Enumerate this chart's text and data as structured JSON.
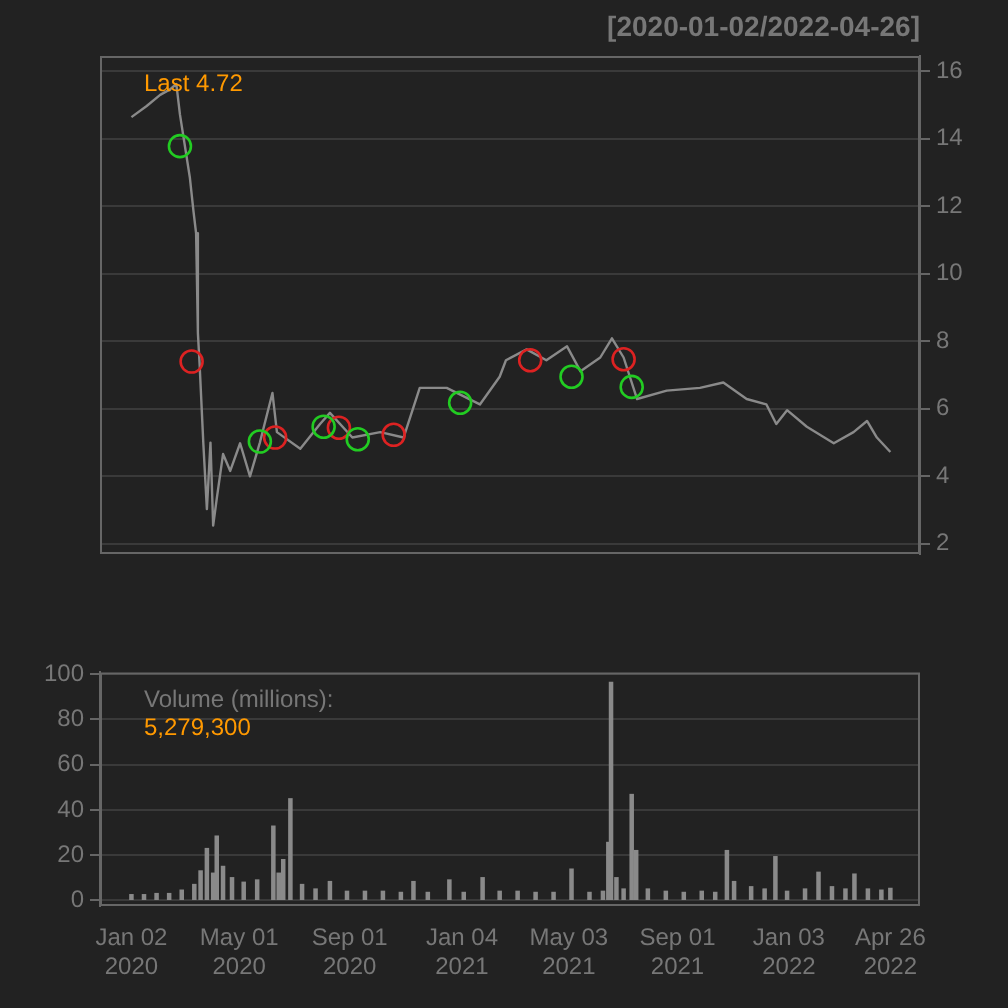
{
  "chart_data": [
    {
      "type": "line",
      "title": "[2020-01-02/2022-04-26]",
      "annotations": [
        "Last 4.72"
      ],
      "xlim": [
        "2019-11-28",
        "2022-05-29"
      ],
      "ylim": [
        1.7,
        16.45
      ],
      "yticks": [
        2,
        4,
        6,
        8,
        10,
        12,
        14,
        16
      ],
      "grid": "y",
      "tick_labels": "y",
      "legend": false,
      "series": [
        {
          "type": "line",
          "color": "#8a8a8a",
          "marker": "none",
          "x": [
            "2020-01-02",
            "2020-01-19",
            "2020-02-03",
            "2020-02-14",
            "2020-02-21",
            "2020-02-25",
            "2020-03-07",
            "2020-03-11",
            "2020-03-14",
            "2020-03-16",
            "2020-03-18",
            "2020-03-22",
            "2020-03-26",
            "2020-03-30",
            "2020-04-02",
            "2020-04-06",
            "2020-04-13",
            "2020-04-21",
            "2020-05-02",
            "2020-05-13",
            "2020-05-24",
            "2020-06-07",
            "2020-06-12",
            "2020-07-08",
            "2020-07-30",
            "2020-08-10",
            "2020-09-04",
            "2020-10-05",
            "2020-10-31",
            "2020-11-18",
            "2020-12-18",
            "2021-01-24",
            "2021-02-15",
            "2021-02-22",
            "2021-03-17",
            "2021-04-08",
            "2021-05-01",
            "2021-05-16",
            "2021-06-07",
            "2021-06-20",
            "2021-07-03",
            "2021-07-18",
            "2021-08-20",
            "2021-09-26",
            "2021-10-22",
            "2021-11-17",
            "2021-12-09",
            "2021-12-20",
            "2022-01-01",
            "2022-01-23",
            "2022-02-22",
            "2022-03-16",
            "2022-03-31",
            "2022-04-11",
            "2022-04-26"
          ],
          "values": [
            14.64,
            14.97,
            15.3,
            15.46,
            15.62,
            14.72,
            12.86,
            11.87,
            11.2,
            8.25,
            7.27,
            5.0,
            3.03,
            5.0,
            2.54,
            3.34,
            4.66,
            4.16,
            4.98,
            4.0,
            5.0,
            6.47,
            5.31,
            4.82,
            5.55,
            5.88,
            5.15,
            5.31,
            5.15,
            6.62,
            6.62,
            6.13,
            6.95,
            7.44,
            7.76,
            7.44,
            7.85,
            7.11,
            7.52,
            8.09,
            7.52,
            6.29,
            6.54,
            6.62,
            6.78,
            6.29,
            6.13,
            5.55,
            5.96,
            5.47,
            4.98,
            5.31,
            5.64,
            5.15,
            4.72
          ]
        },
        {
          "type": "scatter",
          "color": "#22cc22",
          "marker": "circle",
          "x": [
            "2020-02-25",
            "2020-05-24",
            "2020-08-03",
            "2020-09-10",
            "2021-01-02",
            "2021-05-06",
            "2021-07-12"
          ],
          "values": [
            13.78,
            5.03,
            5.47,
            5.1,
            6.18,
            6.95,
            6.65
          ]
        },
        {
          "type": "scatter",
          "color": "#dd2222",
          "marker": "circle",
          "x": [
            "2020-03-09",
            "2020-06-10",
            "2020-08-20",
            "2020-10-20",
            "2021-03-21",
            "2021-07-03"
          ],
          "values": [
            7.4,
            5.15,
            5.44,
            5.23,
            7.44,
            7.47
          ]
        }
      ]
    },
    {
      "type": "bar",
      "annotations": [
        "Volume (millions):",
        "5,279,300"
      ],
      "color": "#8a8a8a",
      "xlim": [
        "2019-11-28",
        "2022-05-29"
      ],
      "ylim": [
        -2.5,
        100.8
      ],
      "yticks": [
        0,
        20,
        40,
        60,
        80,
        100
      ],
      "grid": "y",
      "legend": false,
      "xticks": [
        {
          "value": "2020-01-02",
          "label": "Jan 02\n2020"
        },
        {
          "value": "2020-05-01",
          "label": "May 01\n2020"
        },
        {
          "value": "2020-09-01",
          "label": "Sep 01\n2020"
        },
        {
          "value": "2021-01-04",
          "label": "Jan 04\n2021"
        },
        {
          "value": "2021-05-03",
          "label": "May 03\n2021"
        },
        {
          "value": "2021-09-01",
          "label": "Sep 01\n2021"
        },
        {
          "value": "2022-01-03",
          "label": "Jan 03\n2022"
        },
        {
          "value": "2022-04-26",
          "label": "Apr 26\n2022"
        }
      ],
      "x": [
        "2020-01-02",
        "2020-01-16",
        "2020-01-30",
        "2020-02-13",
        "2020-02-27",
        "2020-03-12",
        "2020-03-19",
        "2020-03-26",
        "2020-04-02",
        "2020-04-06",
        "2020-04-13",
        "2020-04-23",
        "2020-05-06",
        "2020-05-21",
        "2020-06-08",
        "2020-06-14",
        "2020-06-19",
        "2020-06-27",
        "2020-07-10",
        "2020-07-25",
        "2020-08-10",
        "2020-08-29",
        "2020-09-18",
        "2020-10-08",
        "2020-10-28",
        "2020-11-11",
        "2020-11-27",
        "2020-12-21",
        "2021-01-06",
        "2021-01-27",
        "2021-02-15",
        "2021-03-07",
        "2021-03-27",
        "2021-04-16",
        "2021-05-06",
        "2021-05-26",
        "2021-06-10",
        "2021-06-16",
        "2021-06-19",
        "2021-06-25",
        "2021-07-03",
        "2021-07-12",
        "2021-07-17",
        "2021-07-30",
        "2021-08-19",
        "2021-09-08",
        "2021-09-28",
        "2021-10-13",
        "2021-10-26",
        "2021-11-03",
        "2021-11-22",
        "2021-12-07",
        "2021-12-19",
        "2022-01-01",
        "2022-01-21",
        "2022-02-05",
        "2022-02-20",
        "2022-03-07",
        "2022-03-17",
        "2022-04-01",
        "2022-04-16",
        "2022-04-26"
      ],
      "values": [
        2.5,
        2.5,
        3,
        3,
        4.5,
        7,
        13,
        22.9,
        12,
        28.4,
        15,
        10,
        8,
        9,
        32.8,
        12,
        18,
        44.9,
        7,
        5,
        8.3,
        4,
        4,
        4,
        3.5,
        8.3,
        3.5,
        9,
        3.5,
        10,
        4,
        4,
        3.5,
        3.5,
        13.8,
        3.5,
        4,
        25.6,
        96.4,
        10,
        5,
        46.8,
        22,
        5,
        4,
        3.5,
        4,
        3.5,
        22,
        8.3,
        6,
        5,
        19.3,
        4,
        5,
        12.4,
        6,
        5,
        11.6,
        5,
        4.5,
        5.28
      ]
    }
  ]
}
